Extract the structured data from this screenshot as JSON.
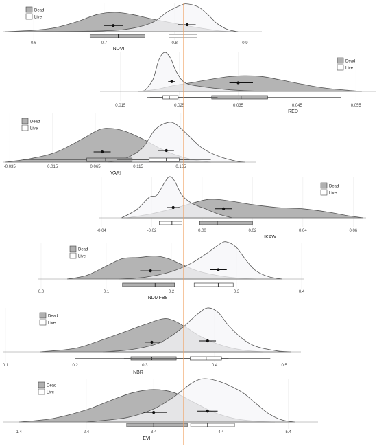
{
  "colors": {
    "dead": "#b0b0b0",
    "live": "#f6f6f8",
    "stroke": "#555555",
    "reference_line": "#f0a060"
  },
  "chart_data": [
    {
      "type": "density-boxplot",
      "xlabel": "NDVI",
      "xlim": [
        0.56,
        0.92
      ],
      "ticks": [
        "0.6",
        "0.7",
        "0.8",
        "0.9"
      ],
      "tick_values": [
        0.6,
        0.7,
        0.8,
        0.9
      ],
      "legend": [
        "Dead",
        "Live"
      ],
      "legend_position": "top-left",
      "series": [
        {
          "name": "Dead",
          "peak": 0.715,
          "mean": 0.713,
          "ci": [
            0.7,
            0.727
          ],
          "box": {
            "min": 0.56,
            "q1": 0.68,
            "median": 0.72,
            "q3": 0.758,
            "max": 0.86
          }
        },
        {
          "name": "Live",
          "peak": 0.82,
          "mean": 0.818,
          "ci": [
            0.805,
            0.83
          ],
          "box": {
            "min": 0.648,
            "q1": 0.792,
            "median": 0.813,
            "q3": 0.832,
            "max": 0.878
          }
        }
      ]
    },
    {
      "type": "density-boxplot",
      "xlabel": "RED",
      "xlim": [
        0.012,
        0.058
      ],
      "ticks": [
        "0.015",
        "0.025",
        "0.035",
        "0.045",
        "0.055"
      ],
      "tick_values": [
        0.015,
        0.025,
        0.035,
        0.045,
        0.055
      ],
      "legend": [
        "Dead",
        "Live"
      ],
      "legend_position": "top-right",
      "series": [
        {
          "name": "Dead",
          "peak": 0.036,
          "mean": 0.035,
          "ci": [
            0.0335,
            0.0375
          ],
          "box": {
            "min": 0.02,
            "q1": 0.0305,
            "median": 0.0355,
            "q3": 0.04,
            "max": 0.0525
          }
        },
        {
          "name": "Live",
          "peak": 0.0225,
          "mean": 0.0237,
          "ci": [
            0.0231,
            0.0243
          ],
          "box": {
            "min": 0.0195,
            "q1": 0.0222,
            "median": 0.0233,
            "q3": 0.0248,
            "max": 0.0315
          }
        }
      ]
    },
    {
      "type": "density-boxplot",
      "xlabel": "VARI",
      "xlim": [
        -0.04,
        0.25
      ],
      "ticks": [
        "-0.035",
        "0.015",
        "0.065",
        "0.115",
        "0.165"
      ],
      "tick_values": [
        -0.035,
        0.015,
        0.065,
        0.115,
        0.165
      ],
      "legend": [
        "Dead",
        "Live"
      ],
      "legend_position": "top-left",
      "series": [
        {
          "name": "Dead",
          "peak": 0.08,
          "mean": 0.073,
          "ci": [
            0.063,
            0.083
          ],
          "box": {
            "min": -0.02,
            "q1": 0.055,
            "median": 0.077,
            "q3": 0.108,
            "max": 0.175
          }
        },
        {
          "name": "Live",
          "peak": 0.15,
          "mean": 0.148,
          "ci": [
            0.138,
            0.157
          ],
          "box": {
            "min": 0.09,
            "q1": 0.128,
            "median": 0.148,
            "q3": 0.163,
            "max": 0.2
          }
        }
      ]
    },
    {
      "type": "density-boxplot",
      "xlabel": "IKAW",
      "xlim": [
        -0.04,
        0.064
      ],
      "ticks": [
        "-0.04",
        "-0.02",
        "0.00",
        "0.02",
        "0.04",
        "0.06"
      ],
      "tick_values": [
        -0.04,
        -0.02,
        0.0,
        0.02,
        0.04,
        0.06
      ],
      "legend": [
        "Dead",
        "Live"
      ],
      "legend_position": "top-right",
      "series": [
        {
          "name": "Dead",
          "peak": 0.005,
          "mean": 0.0085,
          "ci": [
            0.005,
            0.012
          ],
          "box": {
            "min": -0.008,
            "q1": -0.001,
            "median": 0.006,
            "q3": 0.02,
            "max": 0.05
          }
        },
        {
          "name": "Live",
          "peak": -0.013,
          "mean": -0.0115,
          "ci": [
            -0.014,
            -0.009
          ],
          "box": {
            "min": -0.025,
            "q1": -0.017,
            "median": -0.012,
            "q3": -0.008,
            "max": 0.01
          }
        }
      ]
    },
    {
      "type": "density-boxplot",
      "xlabel": "NDMI-B8",
      "xlim": [
        0.0,
        0.4
      ],
      "ticks": [
        "0.0",
        "0.1",
        "0.2",
        "0.3",
        "0.4"
      ],
      "tick_values": [
        0.0,
        0.1,
        0.2,
        0.3,
        0.4
      ],
      "legend": [
        "Dead",
        "Live"
      ],
      "legend_position": "top-left",
      "series": [
        {
          "name": "Dead",
          "peak": 0.175,
          "mean": 0.168,
          "ci": [
            0.152,
            0.184
          ],
          "box": {
            "min": 0.055,
            "q1": 0.125,
            "median": 0.175,
            "q3": 0.205,
            "max": 0.3
          }
        },
        {
          "name": "Live",
          "peak": 0.285,
          "mean": 0.272,
          "ci": [
            0.26,
            0.285
          ],
          "box": {
            "min": 0.16,
            "q1": 0.235,
            "median": 0.272,
            "q3": 0.295,
            "max": 0.35
          }
        }
      ]
    },
    {
      "type": "density-boxplot",
      "xlabel": "NBR",
      "xlim": [
        0.1,
        0.52
      ],
      "ticks": [
        "0.1",
        "0.2",
        "0.3",
        "0.4",
        "0.5"
      ],
      "tick_values": [
        0.1,
        0.2,
        0.3,
        0.4,
        0.5
      ],
      "legend": [
        "Dead",
        "Live"
      ],
      "legend_position": "top-left",
      "series": [
        {
          "name": "Dead",
          "peak": 0.33,
          "mean": 0.31,
          "ci": [
            0.3,
            0.325
          ],
          "box": {
            "min": 0.2,
            "q1": 0.28,
            "median": 0.31,
            "q3": 0.345,
            "max": 0.42
          }
        },
        {
          "name": "Live",
          "peak": 0.39,
          "mean": 0.39,
          "ci": [
            0.378,
            0.402
          ],
          "box": {
            "min": 0.27,
            "q1": 0.365,
            "median": 0.388,
            "q3": 0.41,
            "max": 0.48
          }
        }
      ]
    },
    {
      "type": "density-boxplot",
      "xlabel": "EVI",
      "xlim": [
        1.2,
        5.8
      ],
      "ticks": [
        "1.4",
        "2.4",
        "3.4",
        "4.4",
        "5.4"
      ],
      "tick_values": [
        1.4,
        2.4,
        3.4,
        4.4,
        5.4
      ],
      "legend": [
        "Dead",
        "Live"
      ],
      "legend_position": "top-left",
      "series": [
        {
          "name": "Dead",
          "peak": 3.4,
          "mean": 3.4,
          "ci": [
            3.25,
            3.6
          ],
          "box": {
            "min": 1.95,
            "q1": 3.0,
            "median": 3.4,
            "q3": 3.9,
            "max": 4.7
          }
        },
        {
          "name": "Live",
          "peak": 4.2,
          "mean": 4.2,
          "ci": [
            4.05,
            4.35
          ],
          "box": {
            "min": 2.8,
            "q1": 3.95,
            "median": 4.2,
            "q3": 4.6,
            "max": 5.2
          }
        }
      ]
    }
  ]
}
